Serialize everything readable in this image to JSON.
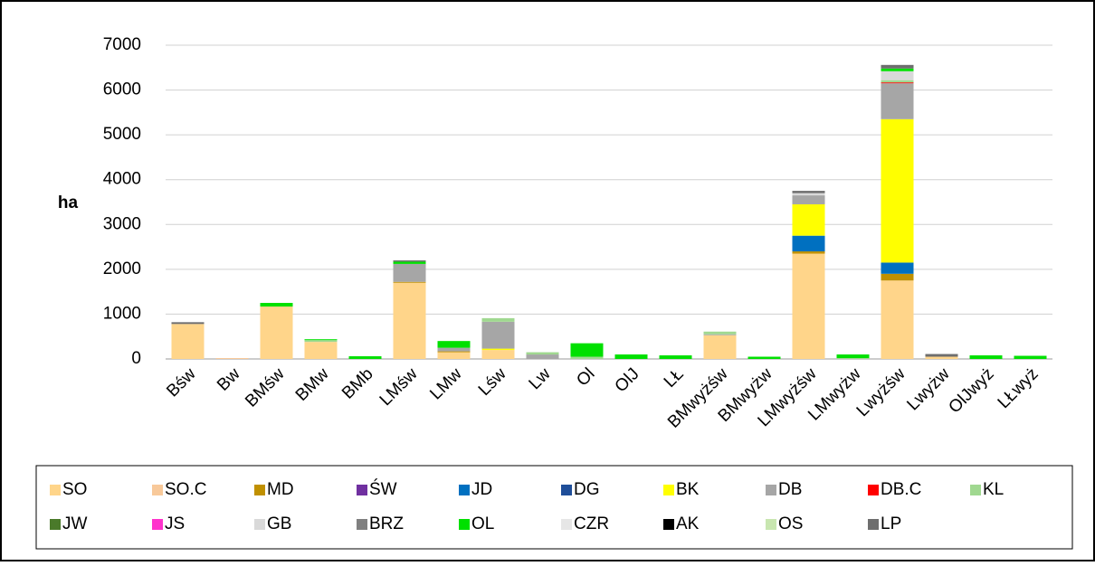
{
  "chart_data": {
    "type": "bar",
    "stacked": true,
    "y_label": "ha",
    "categories": [
      "Bśw",
      "Bw",
      "BMśw",
      "BMw",
      "BMb",
      "LMśw",
      "LMw",
      "Lśw",
      "Lw",
      "Ol",
      "OlJ",
      "LŁ",
      "BMwyżśw",
      "BMwyżw",
      "LMwyżśw",
      "LMwyżw",
      "Lwyżśw",
      "Lwyżw",
      "OlJwyż",
      "LŁwyż"
    ],
    "ylim": [
      0,
      7000
    ],
    "yticks": [
      0,
      1000,
      2000,
      3000,
      4000,
      5000,
      6000,
      7000
    ],
    "grid": true,
    "series": [
      {
        "name": "SO",
        "color": "#ffd58a",
        "values": [
          780,
          0,
          1170,
          380,
          0,
          1700,
          150,
          200,
          0,
          0,
          0,
          0,
          530,
          0,
          2350,
          0,
          1750,
          50,
          0,
          0
        ]
      },
      {
        "name": "SO.C",
        "color": "#f8c99a",
        "values": [
          0,
          20,
          0,
          0,
          0,
          0,
          0,
          0,
          0,
          0,
          0,
          0,
          0,
          0,
          0,
          0,
          0,
          0,
          0,
          0
        ]
      },
      {
        "name": "MD",
        "color": "#c09000",
        "values": [
          0,
          0,
          0,
          0,
          0,
          20,
          20,
          0,
          0,
          0,
          0,
          0,
          0,
          0,
          50,
          0,
          150,
          0,
          0,
          0
        ]
      },
      {
        "name": "ŚW",
        "color": "#7030a0",
        "values": [
          0,
          0,
          0,
          0,
          0,
          0,
          0,
          0,
          0,
          0,
          0,
          0,
          0,
          0,
          0,
          0,
          0,
          0,
          0,
          0
        ]
      },
      {
        "name": "JD",
        "color": "#0070c0",
        "values": [
          0,
          0,
          0,
          0,
          0,
          0,
          0,
          0,
          0,
          0,
          0,
          0,
          0,
          0,
          350,
          0,
          250,
          0,
          0,
          0
        ]
      },
      {
        "name": "DG",
        "color": "#1f4e99",
        "values": [
          0,
          0,
          0,
          0,
          0,
          0,
          0,
          0,
          0,
          0,
          0,
          0,
          0,
          0,
          0,
          0,
          0,
          0,
          0,
          0
        ]
      },
      {
        "name": "BK",
        "color": "#ffff00",
        "values": [
          0,
          0,
          0,
          0,
          0,
          0,
          0,
          30,
          0,
          0,
          0,
          0,
          0,
          0,
          700,
          0,
          3200,
          0,
          0,
          0
        ]
      },
      {
        "name": "DB",
        "color": "#a6a6a6",
        "values": [
          0,
          0,
          0,
          0,
          0,
          400,
          80,
          600,
          100,
          0,
          0,
          0,
          20,
          0,
          200,
          0,
          800,
          0,
          0,
          0
        ]
      },
      {
        "name": "DB.C",
        "color": "#ff0000",
        "values": [
          0,
          0,
          0,
          0,
          0,
          0,
          0,
          0,
          0,
          0,
          0,
          0,
          0,
          0,
          0,
          0,
          20,
          0,
          0,
          0
        ]
      },
      {
        "name": "KL",
        "color": "#a0d890",
        "values": [
          0,
          0,
          0,
          40,
          0,
          0,
          0,
          80,
          50,
          50,
          0,
          0,
          60,
          0,
          0,
          20,
          50,
          0,
          0,
          0
        ]
      },
      {
        "name": "JW",
        "color": "#4a7a2a",
        "values": [
          0,
          0,
          0,
          0,
          0,
          0,
          0,
          0,
          0,
          0,
          0,
          0,
          0,
          0,
          0,
          0,
          0,
          0,
          0,
          0
        ]
      },
      {
        "name": "JS",
        "color": "#ff33cc",
        "values": [
          0,
          0,
          0,
          0,
          0,
          0,
          0,
          0,
          0,
          0,
          0,
          0,
          0,
          0,
          0,
          0,
          0,
          0,
          0,
          0
        ]
      },
      {
        "name": "GB",
        "color": "#d9d9d9",
        "values": [
          0,
          0,
          0,
          0,
          0,
          0,
          0,
          0,
          0,
          0,
          0,
          0,
          0,
          0,
          50,
          0,
          200,
          0,
          0,
          0
        ]
      },
      {
        "name": "BRZ",
        "color": "#808080",
        "values": [
          0,
          0,
          0,
          0,
          0,
          0,
          0,
          0,
          0,
          0,
          0,
          0,
          0,
          0,
          0,
          0,
          0,
          0,
          0,
          0
        ]
      },
      {
        "name": "OL",
        "color": "#00e000",
        "values": [
          0,
          0,
          80,
          20,
          60,
          50,
          150,
          0,
          0,
          300,
          100,
          80,
          0,
          50,
          0,
          80,
          60,
          0,
          80,
          70
        ]
      },
      {
        "name": "CZR",
        "color": "#e6e6e6",
        "values": [
          0,
          0,
          0,
          0,
          0,
          0,
          0,
          0,
          0,
          0,
          0,
          0,
          0,
          0,
          0,
          0,
          0,
          0,
          0,
          0
        ]
      },
      {
        "name": "AK",
        "color": "#000000",
        "values": [
          0,
          0,
          0,
          0,
          0,
          0,
          0,
          0,
          0,
          0,
          0,
          0,
          0,
          0,
          0,
          0,
          0,
          0,
          0,
          0
        ]
      },
      {
        "name": "OS",
        "color": "#c8e6b0",
        "values": [
          0,
          0,
          0,
          0,
          0,
          0,
          0,
          0,
          0,
          0,
          0,
          0,
          0,
          0,
          0,
          0,
          0,
          0,
          0,
          0
        ]
      },
      {
        "name": "LP",
        "color": "#6e6e6e",
        "values": [
          40,
          0,
          0,
          0,
          0,
          30,
          0,
          0,
          0,
          0,
          0,
          0,
          0,
          0,
          50,
          0,
          80,
          60,
          0,
          0
        ]
      }
    ]
  }
}
